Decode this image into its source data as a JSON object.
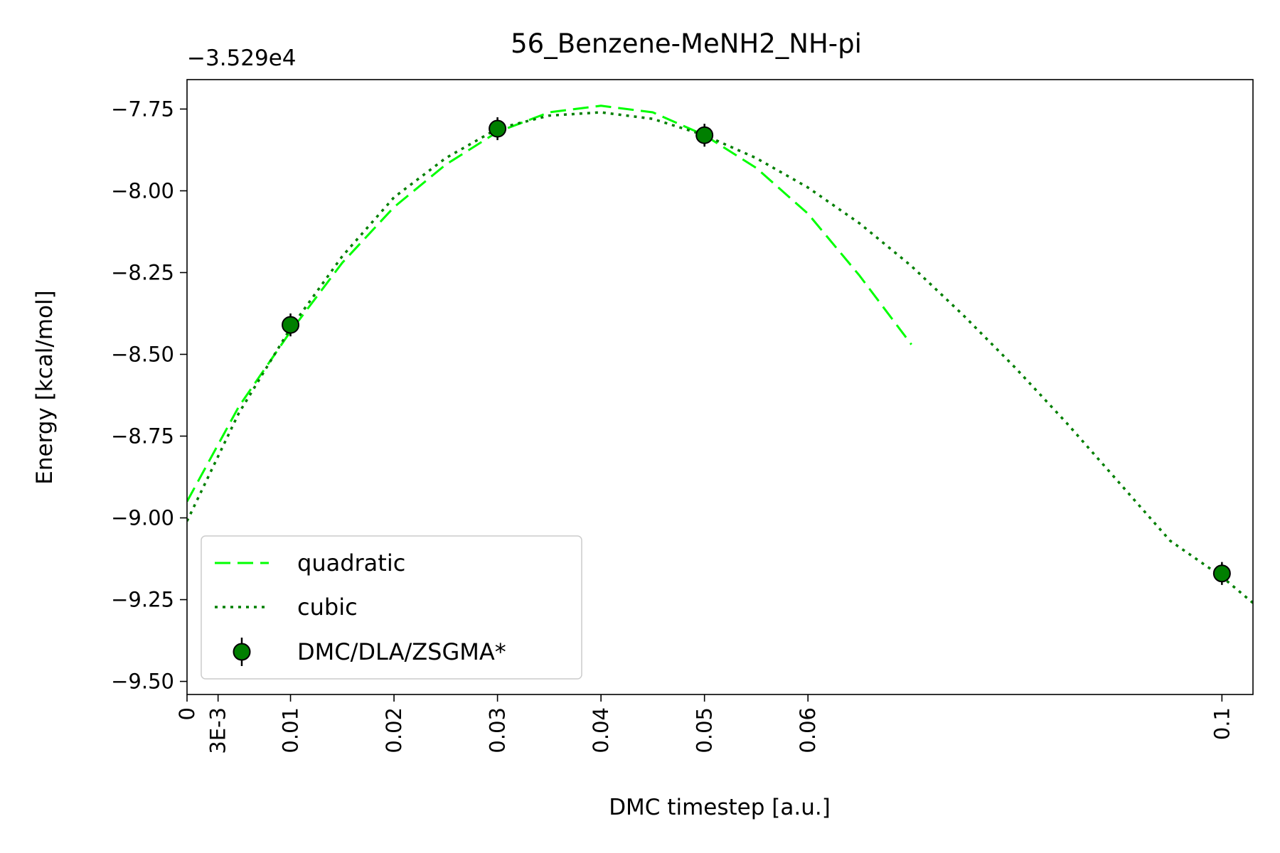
{
  "chart_data": {
    "type": "line",
    "title": "56_Benzene-MeNH2_NH-pi",
    "xlabel": "DMC timestep [a.u.]",
    "ylabel": "Energy [kcal/mol]",
    "y_offset_label": "−3.529e4",
    "y_offset": -35290,
    "xlim": [
      0,
      0.103
    ],
    "ylim": [
      -9.54,
      -7.66
    ],
    "x_ticks": [
      {
        "value": 0,
        "label": "0"
      },
      {
        "value": 0.003,
        "label": "3E-3"
      },
      {
        "value": 0.01,
        "label": "0.01"
      },
      {
        "value": 0.02,
        "label": "0.02"
      },
      {
        "value": 0.03,
        "label": "0.03"
      },
      {
        "value": 0.04,
        "label": "0.04"
      },
      {
        "value": 0.05,
        "label": "0.05"
      },
      {
        "value": 0.06,
        "label": "0.06"
      },
      {
        "value": 0.1,
        "label": "0.1"
      }
    ],
    "y_ticks": [
      {
        "value": -7.75,
        "label": "−7.75"
      },
      {
        "value": -8.0,
        "label": "−8.00"
      },
      {
        "value": -8.25,
        "label": "−8.25"
      },
      {
        "value": -8.5,
        "label": "−8.50"
      },
      {
        "value": -8.75,
        "label": "−8.75"
      },
      {
        "value": -9.0,
        "label": "−9.00"
      },
      {
        "value": -9.25,
        "label": "−9.25"
      },
      {
        "value": -9.5,
        "label": "−9.50"
      }
    ],
    "grid": false,
    "legend_position": "lower-left",
    "series": [
      {
        "name": "quadratic",
        "style": "dashed",
        "color": "#00ff00",
        "x": [
          0,
          0.005,
          0.01,
          0.015,
          0.02,
          0.025,
          0.03,
          0.035,
          0.04,
          0.045,
          0.05,
          0.055,
          0.06,
          0.065,
          0.07
        ],
        "y": [
          -8.95,
          -8.66,
          -8.43,
          -8.22,
          -8.05,
          -7.92,
          -7.82,
          -7.76,
          -7.74,
          -7.76,
          -7.83,
          -7.93,
          -8.07,
          -8.26,
          -8.47
        ]
      },
      {
        "name": "cubic",
        "style": "dotted",
        "color": "#007f00",
        "x": [
          0,
          0.005,
          0.01,
          0.015,
          0.02,
          0.025,
          0.03,
          0.035,
          0.04,
          0.045,
          0.05,
          0.055,
          0.06,
          0.065,
          0.07,
          0.075,
          0.08,
          0.085,
          0.09,
          0.095,
          0.1,
          0.103
        ],
        "y": [
          -9.01,
          -8.68,
          -8.42,
          -8.2,
          -8.02,
          -7.9,
          -7.81,
          -7.77,
          -7.76,
          -7.78,
          -7.83,
          -7.9,
          -7.99,
          -8.1,
          -8.23,
          -8.38,
          -8.54,
          -8.71,
          -8.89,
          -9.07,
          -9.18,
          -9.26
        ]
      }
    ],
    "points": {
      "name": "DMC/DLA/ZSGMA*",
      "color": "#007f00",
      "x": [
        0.01,
        0.03,
        0.05,
        0.1
      ],
      "y": [
        -8.41,
        -7.81,
        -7.83,
        -9.17
      ],
      "yerr": [
        0.035,
        0.035,
        0.035,
        0.035
      ]
    }
  }
}
